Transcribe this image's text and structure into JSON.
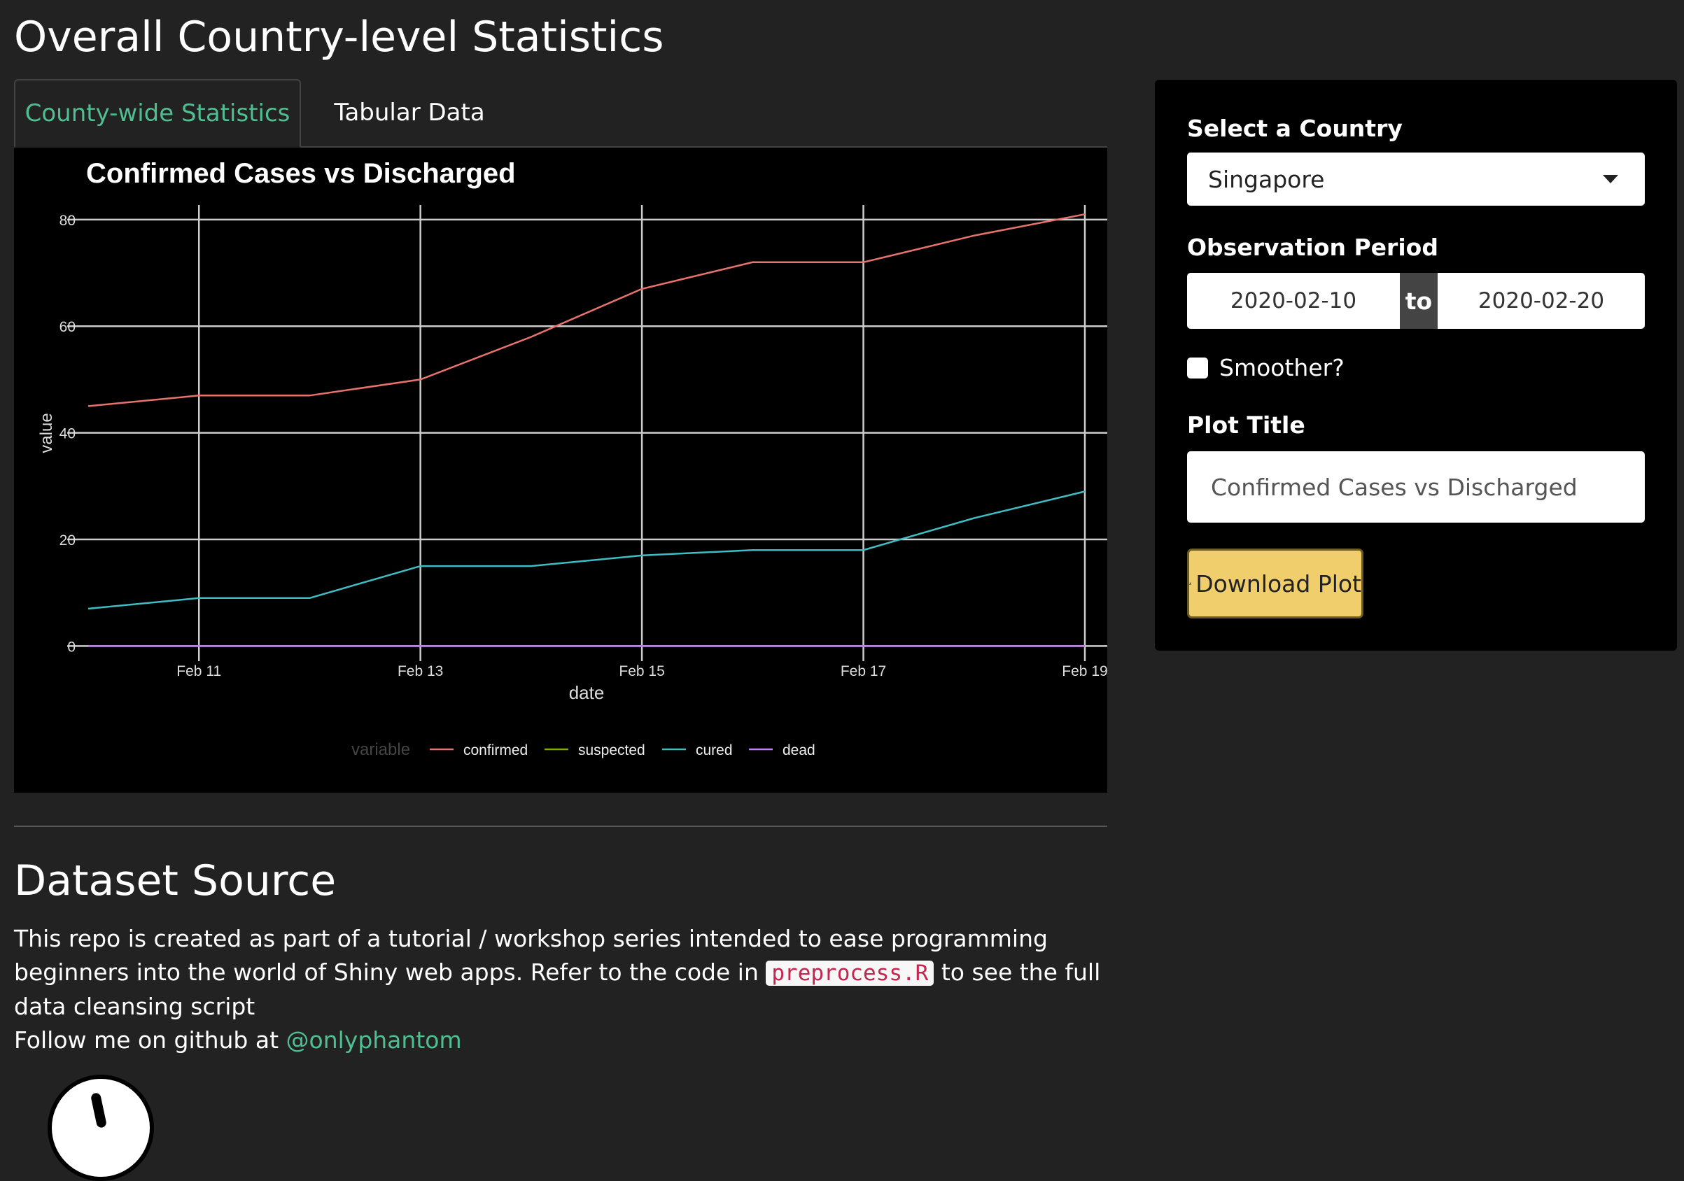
{
  "page": {
    "title": "Overall Country-level Statistics"
  },
  "tabs": [
    {
      "label": "County-wide Statistics",
      "active": true
    },
    {
      "label": "Tabular Data",
      "active": false
    }
  ],
  "chart_data": {
    "type": "line",
    "title": "Confirmed Cases vs Discharged",
    "xlabel": "date",
    "ylabel": "value",
    "x": [
      "2020-02-10",
      "2020-02-11",
      "2020-02-12",
      "2020-02-13",
      "2020-02-14",
      "2020-02-15",
      "2020-02-16",
      "2020-02-17",
      "2020-02-18",
      "2020-02-19"
    ],
    "x_tick_labels": [
      "Feb 11",
      "Feb 13",
      "Feb 15",
      "Feb 17",
      "Feb 19"
    ],
    "y_ticks": [
      0,
      20,
      40,
      60,
      80
    ],
    "ylim": [
      -1,
      83
    ],
    "legend_title": "variable",
    "legend_position": "bottom",
    "grid": true,
    "series": [
      {
        "name": "confirmed",
        "color": "#e8736c",
        "values": [
          45,
          47,
          47,
          50,
          58,
          67,
          72,
          72,
          77,
          81
        ]
      },
      {
        "name": "suspected",
        "color": "#7cae00",
        "values": [
          0,
          0,
          0,
          0,
          0,
          0,
          0,
          0,
          0,
          0
        ]
      },
      {
        "name": "cured",
        "color": "#3fbdc4",
        "values": [
          7,
          9,
          9,
          15,
          15,
          17,
          18,
          18,
          24,
          29
        ]
      },
      {
        "name": "dead",
        "color": "#c77cff",
        "values": [
          0,
          0,
          0,
          0,
          0,
          0,
          0,
          0,
          0,
          0
        ]
      }
    ]
  },
  "dataset": {
    "title": "Dataset Source",
    "text1": "This repo is created as part of a tutorial / workshop series intended to ease programming beginners into the world of Shiny web apps. Refer to the code in ",
    "code": "preprocess.R",
    "text2": " to see the full data cleansing script",
    "follow_text": "Follow me on github at ",
    "link": "@onlyphantom"
  },
  "sidebar": {
    "country_label": "Select a Country",
    "country_value": "Singapore",
    "period_label": "Observation Period",
    "date_start": "2020-02-10",
    "date_sep": "to",
    "date_end": "2020-02-20",
    "smoother_label": "Smoother?",
    "plot_title_label": "Plot Title",
    "plot_title_value": "Confirmed Cases vs Discharged",
    "download_label": "Download Plot"
  },
  "colors": {
    "accent": "#4fbf91",
    "button": "#f0ce6c",
    "background": "#222222"
  }
}
